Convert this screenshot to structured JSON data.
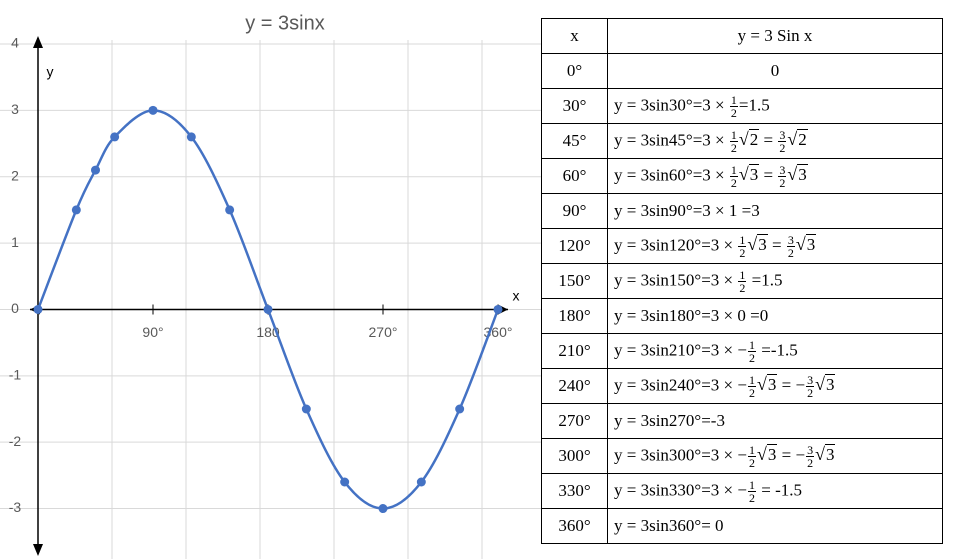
{
  "chart_data": {
    "type": "line",
    "title": "y = 3sinx",
    "x_label": "x",
    "y_label": "y",
    "x": [
      0,
      30,
      45,
      60,
      90,
      120,
      150,
      180,
      210,
      240,
      270,
      300,
      330,
      360
    ],
    "series": [
      {
        "color": "#4472c4",
        "values": [
          0,
          1.5,
          2.1,
          2.6,
          3,
          2.6,
          1.5,
          0,
          -1.5,
          -2.6,
          -3,
          -2.6,
          -1.5,
          0
        ]
      }
    ],
    "xlim": [
      0,
      360
    ],
    "ylim": [
      -3.7,
      4
    ],
    "xticks": [
      {
        "value": 90,
        "label": "90°"
      },
      180,
      {
        "value": 270,
        "label": "270°"
      },
      {
        "value": 360,
        "label": "360°"
      }
    ],
    "yticks": [
      4,
      3,
      2,
      1,
      0,
      -1,
      -2,
      -3
    ],
    "grid": true,
    "markers": true,
    "smooth": true
  },
  "table": {
    "header": [
      "x",
      "y = 3 Sin x"
    ],
    "rows": [
      [
        "0°",
        [
          "0"
        ]
      ],
      [
        "30°",
        [
          "y = 3sin30°=3 × ",
          {
            "num": "1",
            "den": "2"
          },
          "=1.5"
        ]
      ],
      [
        "45°",
        [
          "y = 3sin45°=3 × ",
          {
            "num": "1",
            "den": "2"
          },
          {
            "radical": "√",
            "radicand": "2"
          },
          " = ",
          {
            "num": "3",
            "den": "2"
          },
          {
            "radical": "√",
            "radicand": "2"
          }
        ]
      ],
      [
        "60°",
        [
          "y = 3sin60°=3 × ",
          {
            "num": "1",
            "den": "2"
          },
          {
            "radical": "√",
            "radicand": "3"
          },
          " = ",
          {
            "num": "3",
            "den": "2"
          },
          {
            "radical": "√",
            "radicand": "3"
          }
        ]
      ],
      [
        "90°",
        [
          "y = 3sin90°=3 × 1 =3"
        ]
      ],
      [
        "120°",
        [
          "y = 3sin120°=3 × ",
          {
            "num": "1",
            "den": "2"
          },
          {
            "radical": "√",
            "radicand": "3"
          },
          " = ",
          {
            "num": "3",
            "den": "2"
          },
          {
            "radical": "√",
            "radicand": "3"
          }
        ]
      ],
      [
        "150°",
        [
          "y = 3sin150°=3 × ",
          {
            "num": "1",
            "den": "2"
          },
          " =1.5"
        ]
      ],
      [
        "180°",
        [
          "y = 3sin180°=3 × 0 =0"
        ]
      ],
      [
        "210°",
        [
          "y = 3sin210°=3 × −",
          {
            "num": "1",
            "den": "2"
          },
          " =-1.5"
        ]
      ],
      [
        "240°",
        [
          "y = 3sin240°=3 × −",
          {
            "num": "1",
            "den": "2"
          },
          {
            "radical": "√",
            "radicand": "3"
          },
          " = −",
          {
            "num": "3",
            "den": "2"
          },
          {
            "radical": "√",
            "radicand": "3"
          }
        ]
      ],
      [
        "270°",
        [
          "y = 3sin270°=-3"
        ]
      ],
      [
        "300°",
        [
          "y = 3sin300°=3 × −",
          {
            "num": "1",
            "den": "2"
          },
          {
            "radical": "√",
            "radicand": "3"
          },
          " = −",
          {
            "num": "3",
            "den": "2"
          },
          {
            "radical": "√",
            "radicand": "3"
          }
        ]
      ],
      [
        "330°",
        [
          "y = 3sin330°=3 × −",
          {
            "num": "1",
            "den": "2"
          },
          " = -1.5"
        ]
      ],
      [
        "360°",
        [
          "y = 3sin360°= 0"
        ]
      ]
    ]
  }
}
